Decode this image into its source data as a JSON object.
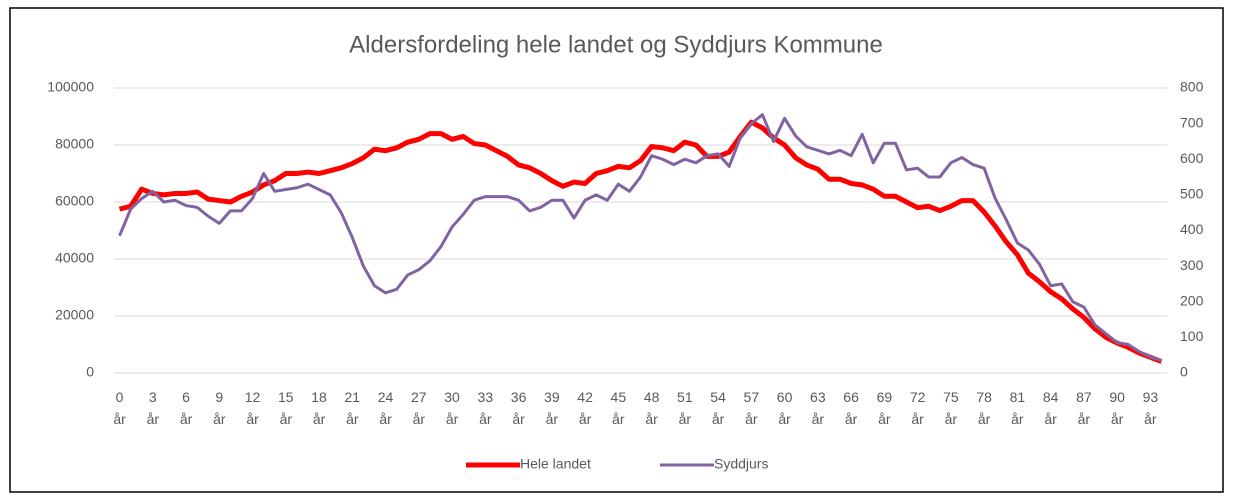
{
  "chart_data": {
    "type": "line",
    "title": "Aldersfordeling hele landet og Syddjurs Kommune",
    "categories": [
      "0 år",
      null,
      null,
      "3 år",
      null,
      null,
      "6 år",
      null,
      null,
      "9 år",
      null,
      null,
      "12 år",
      null,
      null,
      "15 år",
      null,
      null,
      "18 år",
      null,
      null,
      "21 år",
      null,
      null,
      "24 år",
      null,
      null,
      "27 år",
      null,
      null,
      "30 år",
      null,
      null,
      "33 år",
      null,
      null,
      "36 år",
      null,
      null,
      "39 år",
      null,
      null,
      "42 år",
      null,
      null,
      "45 år",
      null,
      null,
      "48 år",
      null,
      null,
      "51 år",
      null,
      null,
      "54 år",
      null,
      null,
      "57 år",
      null,
      null,
      "60 år",
      null,
      null,
      "63 år",
      null,
      null,
      "66 år",
      null,
      null,
      "69 år",
      null,
      null,
      "72 år",
      null,
      null,
      "75 år",
      null,
      null,
      "78 år",
      null,
      null,
      "81 år",
      null,
      null,
      "84 år",
      null,
      null,
      "87 år",
      null,
      null,
      "90 år",
      null,
      null,
      "93 år",
      null
    ],
    "series": [
      {
        "name": "Hele landet",
        "color": "#ff0000",
        "values": [
          57500,
          58500,
          64500,
          63000,
          62500,
          63000,
          63000,
          63500,
          61000,
          60500,
          60000,
          62000,
          63500,
          66000,
          67500,
          70000,
          70000,
          70500,
          70000,
          71000,
          72000,
          73500,
          75500,
          78500,
          78000,
          79000,
          81000,
          82000,
          84000,
          84000,
          82000,
          83000,
          80500,
          80000,
          78000,
          76000,
          73000,
          72000,
          70000,
          67500,
          65500,
          67000,
          66500,
          70000,
          71000,
          72500,
          72000,
          74500,
          79500,
          79000,
          78000,
          81000,
          80000,
          76000,
          76000,
          77500,
          83000,
          88000,
          86000,
          82500,
          80000,
          75500,
          73000,
          71500,
          68000,
          68000,
          66500,
          66000,
          64500,
          62000,
          62000,
          60000,
          58000,
          58500,
          57000,
          58500,
          60500,
          60500,
          56500,
          51500,
          46000,
          41500,
          35000,
          32000,
          28500,
          26000,
          22500,
          19500,
          15500,
          12500,
          10500,
          9000,
          7000,
          5500,
          4000
        ]
      },
      {
        "name": "Syddjurs",
        "color": "#8064a2",
        "axis": "y2",
        "values": [
          385,
          460,
          490,
          510,
          480,
          485,
          470,
          465,
          440,
          420,
          455,
          455,
          490,
          560,
          510,
          515,
          520,
          530,
          515,
          500,
          450,
          380,
          300,
          245,
          225,
          235,
          275,
          290,
          315,
          355,
          410,
          445,
          485,
          495,
          495,
          495,
          485,
          455,
          465,
          485,
          485,
          435,
          485,
          500,
          485,
          530,
          510,
          550,
          610,
          600,
          585,
          600,
          590,
          610,
          615,
          580,
          660,
          700,
          725,
          650,
          715,
          665,
          635,
          625,
          615,
          625,
          610,
          670,
          590,
          645,
          645,
          570,
          575,
          550,
          550,
          590,
          605,
          585,
          575,
          490,
          430,
          365,
          345,
          305,
          245,
          250,
          200,
          185,
          135,
          110,
          85,
          80,
          60,
          45,
          35
        ]
      }
    ],
    "ylim": [
      0,
      100000
    ],
    "yticks": [
      0,
      20000,
      40000,
      60000,
      80000,
      100000
    ],
    "y2lim": [
      0,
      800
    ],
    "y2ticks": [
      0,
      100,
      200,
      300,
      400,
      500,
      600,
      700,
      800
    ],
    "grid": true,
    "legend": "bottom"
  }
}
